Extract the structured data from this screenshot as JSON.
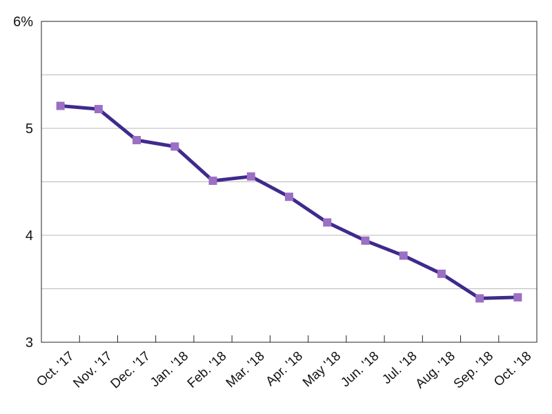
{
  "chart_data": {
    "type": "line",
    "title": "",
    "xlabel": "",
    "ylabel": "",
    "categories": [
      "Oct. '17",
      "Nov. '17",
      "Dec. '17",
      "Jan. '18",
      "Feb. '18",
      "Mar. '18",
      "Apr. '18",
      "May '18",
      "Jun. '18",
      "Jul. '18",
      "Aug. '18",
      "Sep. '18",
      "Oct. '18"
    ],
    "series": [
      {
        "values": [
          5.21,
          5.18,
          4.89,
          4.83,
          4.51,
          4.55,
          4.36,
          4.12,
          3.95,
          3.81,
          3.64,
          3.41,
          3.42
        ]
      }
    ],
    "ylim": [
      3,
      6
    ],
    "y_ticks": [
      {
        "value": 3,
        "label": "3"
      },
      {
        "value": 4,
        "label": "4"
      },
      {
        "value": 5,
        "label": "5"
      },
      {
        "value": 6,
        "label": "6%"
      }
    ],
    "y_gridlines": [
      3.5,
      4,
      4.5,
      5,
      5.5
    ],
    "grid": true,
    "legend": "none",
    "colors": {
      "line": "#3f2a8c",
      "marker": "#9b6fc4",
      "grid": "#b8b8b8",
      "axis": "#222222"
    }
  }
}
